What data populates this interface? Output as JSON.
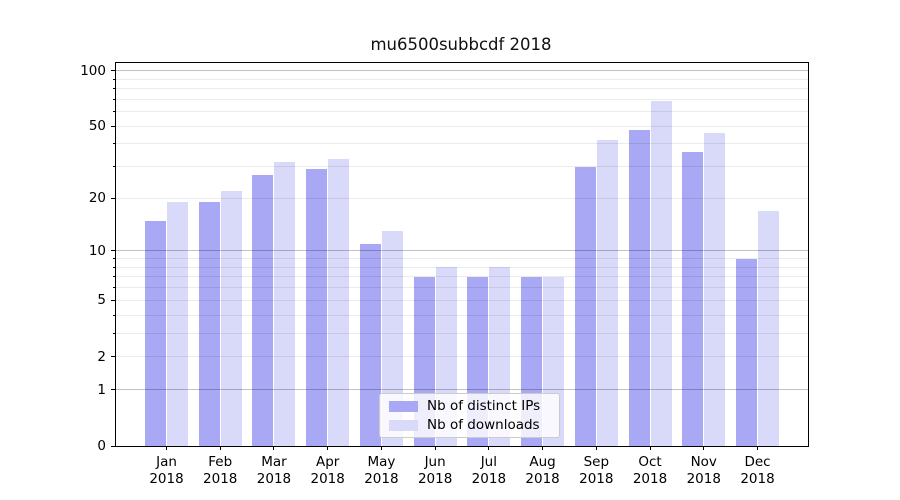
{
  "title": "mu6500subbcdf 2018",
  "legend": {
    "items": [
      {
        "label": "Nb of distinct IPs",
        "color": "#a8a8f5"
      },
      {
        "label": "Nb of downloads",
        "color": "#d9d9fa"
      }
    ]
  },
  "chart_data": {
    "type": "bar",
    "title": "mu6500subbcdf 2018",
    "categories": [
      "Jan",
      "Feb",
      "Mar",
      "Apr",
      "May",
      "Jun",
      "Jul",
      "Aug",
      "Sep",
      "Oct",
      "Nov",
      "Dec"
    ],
    "x_year_label": "2018",
    "series": [
      {
        "name": "Nb of distinct IPs",
        "color": "#a8a8f5",
        "values": [
          15,
          19,
          27,
          29,
          11,
          7,
          7,
          7,
          30,
          48,
          36,
          9
        ]
      },
      {
        "name": "Nb of downloads",
        "color": "#d9d9fa",
        "values": [
          19,
          22,
          32,
          33,
          13,
          8,
          8,
          7,
          42,
          69,
          46,
          17
        ]
      }
    ],
    "xlabel": "",
    "ylabel": "",
    "yscale": "log1p",
    "ylim": [
      0,
      110
    ],
    "yticks": [
      0,
      1,
      2,
      5,
      10,
      20,
      50,
      100
    ],
    "yticks_minor": [
      3,
      4,
      6,
      7,
      8,
      9,
      30,
      40,
      60,
      70,
      80,
      90
    ],
    "grid_major_at": [
      1,
      10,
      100
    ],
    "grid": "horizontal",
    "legend_position": "lower center",
    "bar_color_major": "#a8a8f5",
    "bar_color_minor": "#d9d9fa",
    "grid_major_color": "#c2c2c2",
    "grid_minor_color": "#ebebeb",
    "spine_color": "#000000"
  }
}
